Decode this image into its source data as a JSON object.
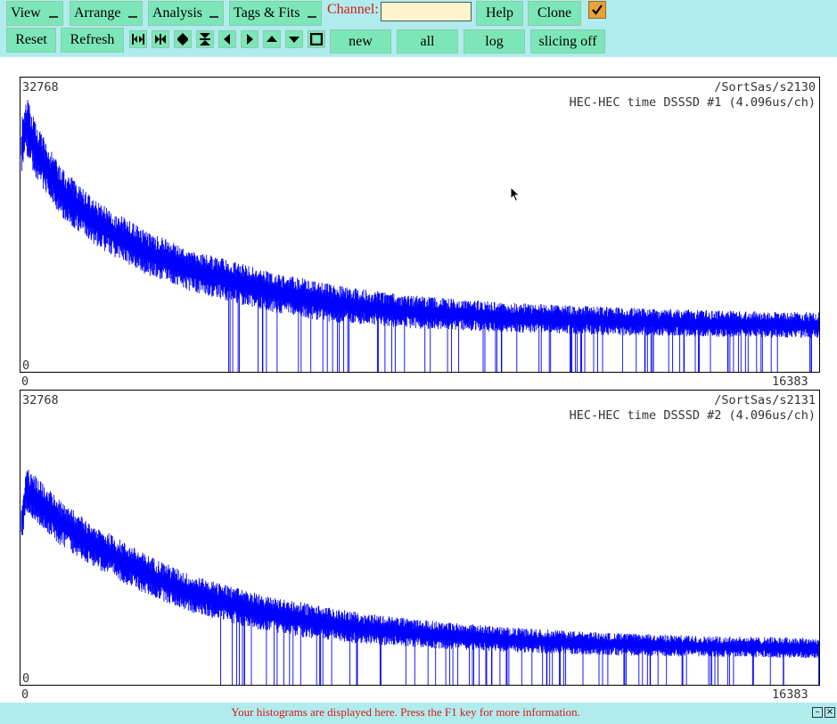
{
  "toolbar": {
    "menus": {
      "view": "View",
      "arrange": "Arrange",
      "analysis": "Analysis",
      "tags_fits": "Tags & Fits"
    },
    "channel_label": "Channel:",
    "channel_value": "",
    "help": "Help",
    "clone": "Clone",
    "reset": "Reset",
    "refresh": "Refresh",
    "new": "new",
    "all": "all",
    "log": "log",
    "slicing": "slicing off",
    "icons": [
      "expand-horizontal-icon",
      "shrink-horizontal-icon",
      "expand-vertical-icon",
      "shrink-vertical-icon",
      "scroll-left-icon",
      "scroll-right-icon",
      "scroll-up-icon",
      "scroll-down-icon",
      "stop-icon"
    ]
  },
  "histograms": [
    {
      "ymax": "32768",
      "ymin": "0",
      "xmin": "0",
      "xmax": "16383",
      "path": "/SortSas/s2130",
      "title": "HEC-HEC time DSSSD #1 (4.096us/ch)"
    },
    {
      "ymax": "32768",
      "ymin": "0",
      "xmin": "0",
      "xmax": "16383",
      "path": "/SortSas/s2131",
      "title": "HEC-HEC time DSSSD #2 (4.096us/ch)"
    }
  ],
  "chart_data": [
    {
      "type": "line",
      "title": "HEC-HEC time DSSSD #1 (4.096us/ch)",
      "xlim": [
        0,
        16383
      ],
      "ylim": [
        0,
        32768
      ],
      "x": [
        0,
        100,
        300,
        800,
        1500,
        2500,
        3500,
        5000,
        6500,
        8000,
        10000,
        12000,
        14000,
        16383
      ],
      "values": [
        26000,
        28500,
        25500,
        21000,
        17500,
        14200,
        12000,
        9800,
        8200,
        7300,
        6600,
        6200,
        5900,
        5700
      ],
      "series": [
        {
          "name": "",
          "color": "#0000ff"
        }
      ]
    },
    {
      "type": "line",
      "title": "HEC-HEC time DSSSD #2 (4.096us/ch)",
      "xlim": [
        0,
        16383
      ],
      "ylim": [
        0,
        32768
      ],
      "x": [
        0,
        100,
        300,
        800,
        1500,
        2500,
        3500,
        5000,
        6500,
        8000,
        10000,
        12000,
        14000,
        16383
      ],
      "values": [
        18500,
        22500,
        21500,
        18800,
        16200,
        13200,
        10800,
        8600,
        7200,
        6300,
        5500,
        5000,
        4700,
        4500
      ],
      "series": [
        {
          "name": "",
          "color": "#0000ff"
        }
      ]
    }
  ],
  "status": {
    "message": "Your histograms are displayed here. Press the F1 key for more information."
  },
  "colors": {
    "toolbar_bg": "#b0eced",
    "button": "#7de6b8",
    "trace": "#0000ff",
    "accent": "#d81818"
  }
}
